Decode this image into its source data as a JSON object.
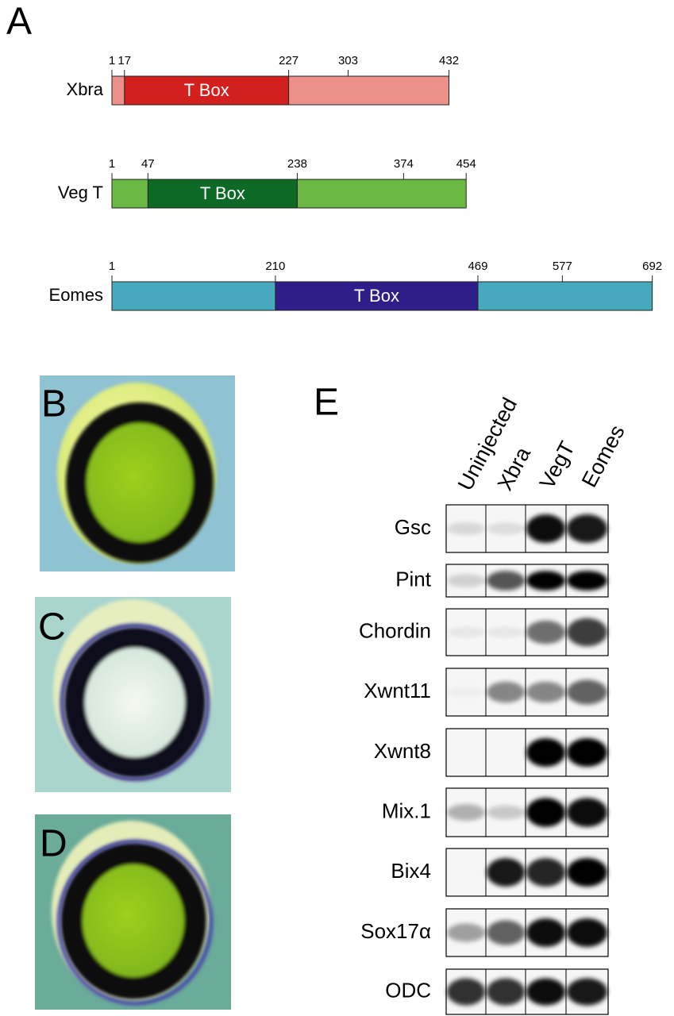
{
  "panel_a": {
    "label": "A",
    "proteins": [
      {
        "name": "Xbra",
        "ticks": [
          1,
          17,
          227,
          303,
          432
        ],
        "domain": {
          "label": "T Box",
          "start": 17,
          "end": 227
        },
        "color": "#ec9189",
        "domain_color": "#d41f1f"
      },
      {
        "name": "Veg T",
        "ticks": [
          1,
          47,
          238,
          374,
          454
        ],
        "domain": {
          "label": "T Box",
          "start": 47,
          "end": 238
        },
        "color": "#6cb845",
        "domain_color": "#0d6a26"
      },
      {
        "name": "Eomes",
        "ticks": [
          1,
          210,
          469,
          577,
          692
        ],
        "domain": {
          "label": "T Box",
          "start": 210,
          "end": 469
        },
        "color": "#47a9bd",
        "domain_color": "#2f1d8a"
      }
    ]
  },
  "panel_b": {
    "label": "B"
  },
  "panel_c": {
    "label": "C"
  },
  "panel_d": {
    "label": "D"
  },
  "panel_e": {
    "label": "E",
    "lanes": [
      "Uninjected",
      "Xbra",
      "VegT",
      "Eomes"
    ],
    "genes": [
      "Gsc",
      "Pint",
      "Chordin",
      "Xwnt11",
      "Xwnt8",
      "Mix.1",
      "Bix4",
      "Sox17α",
      "ODC"
    ]
  }
}
